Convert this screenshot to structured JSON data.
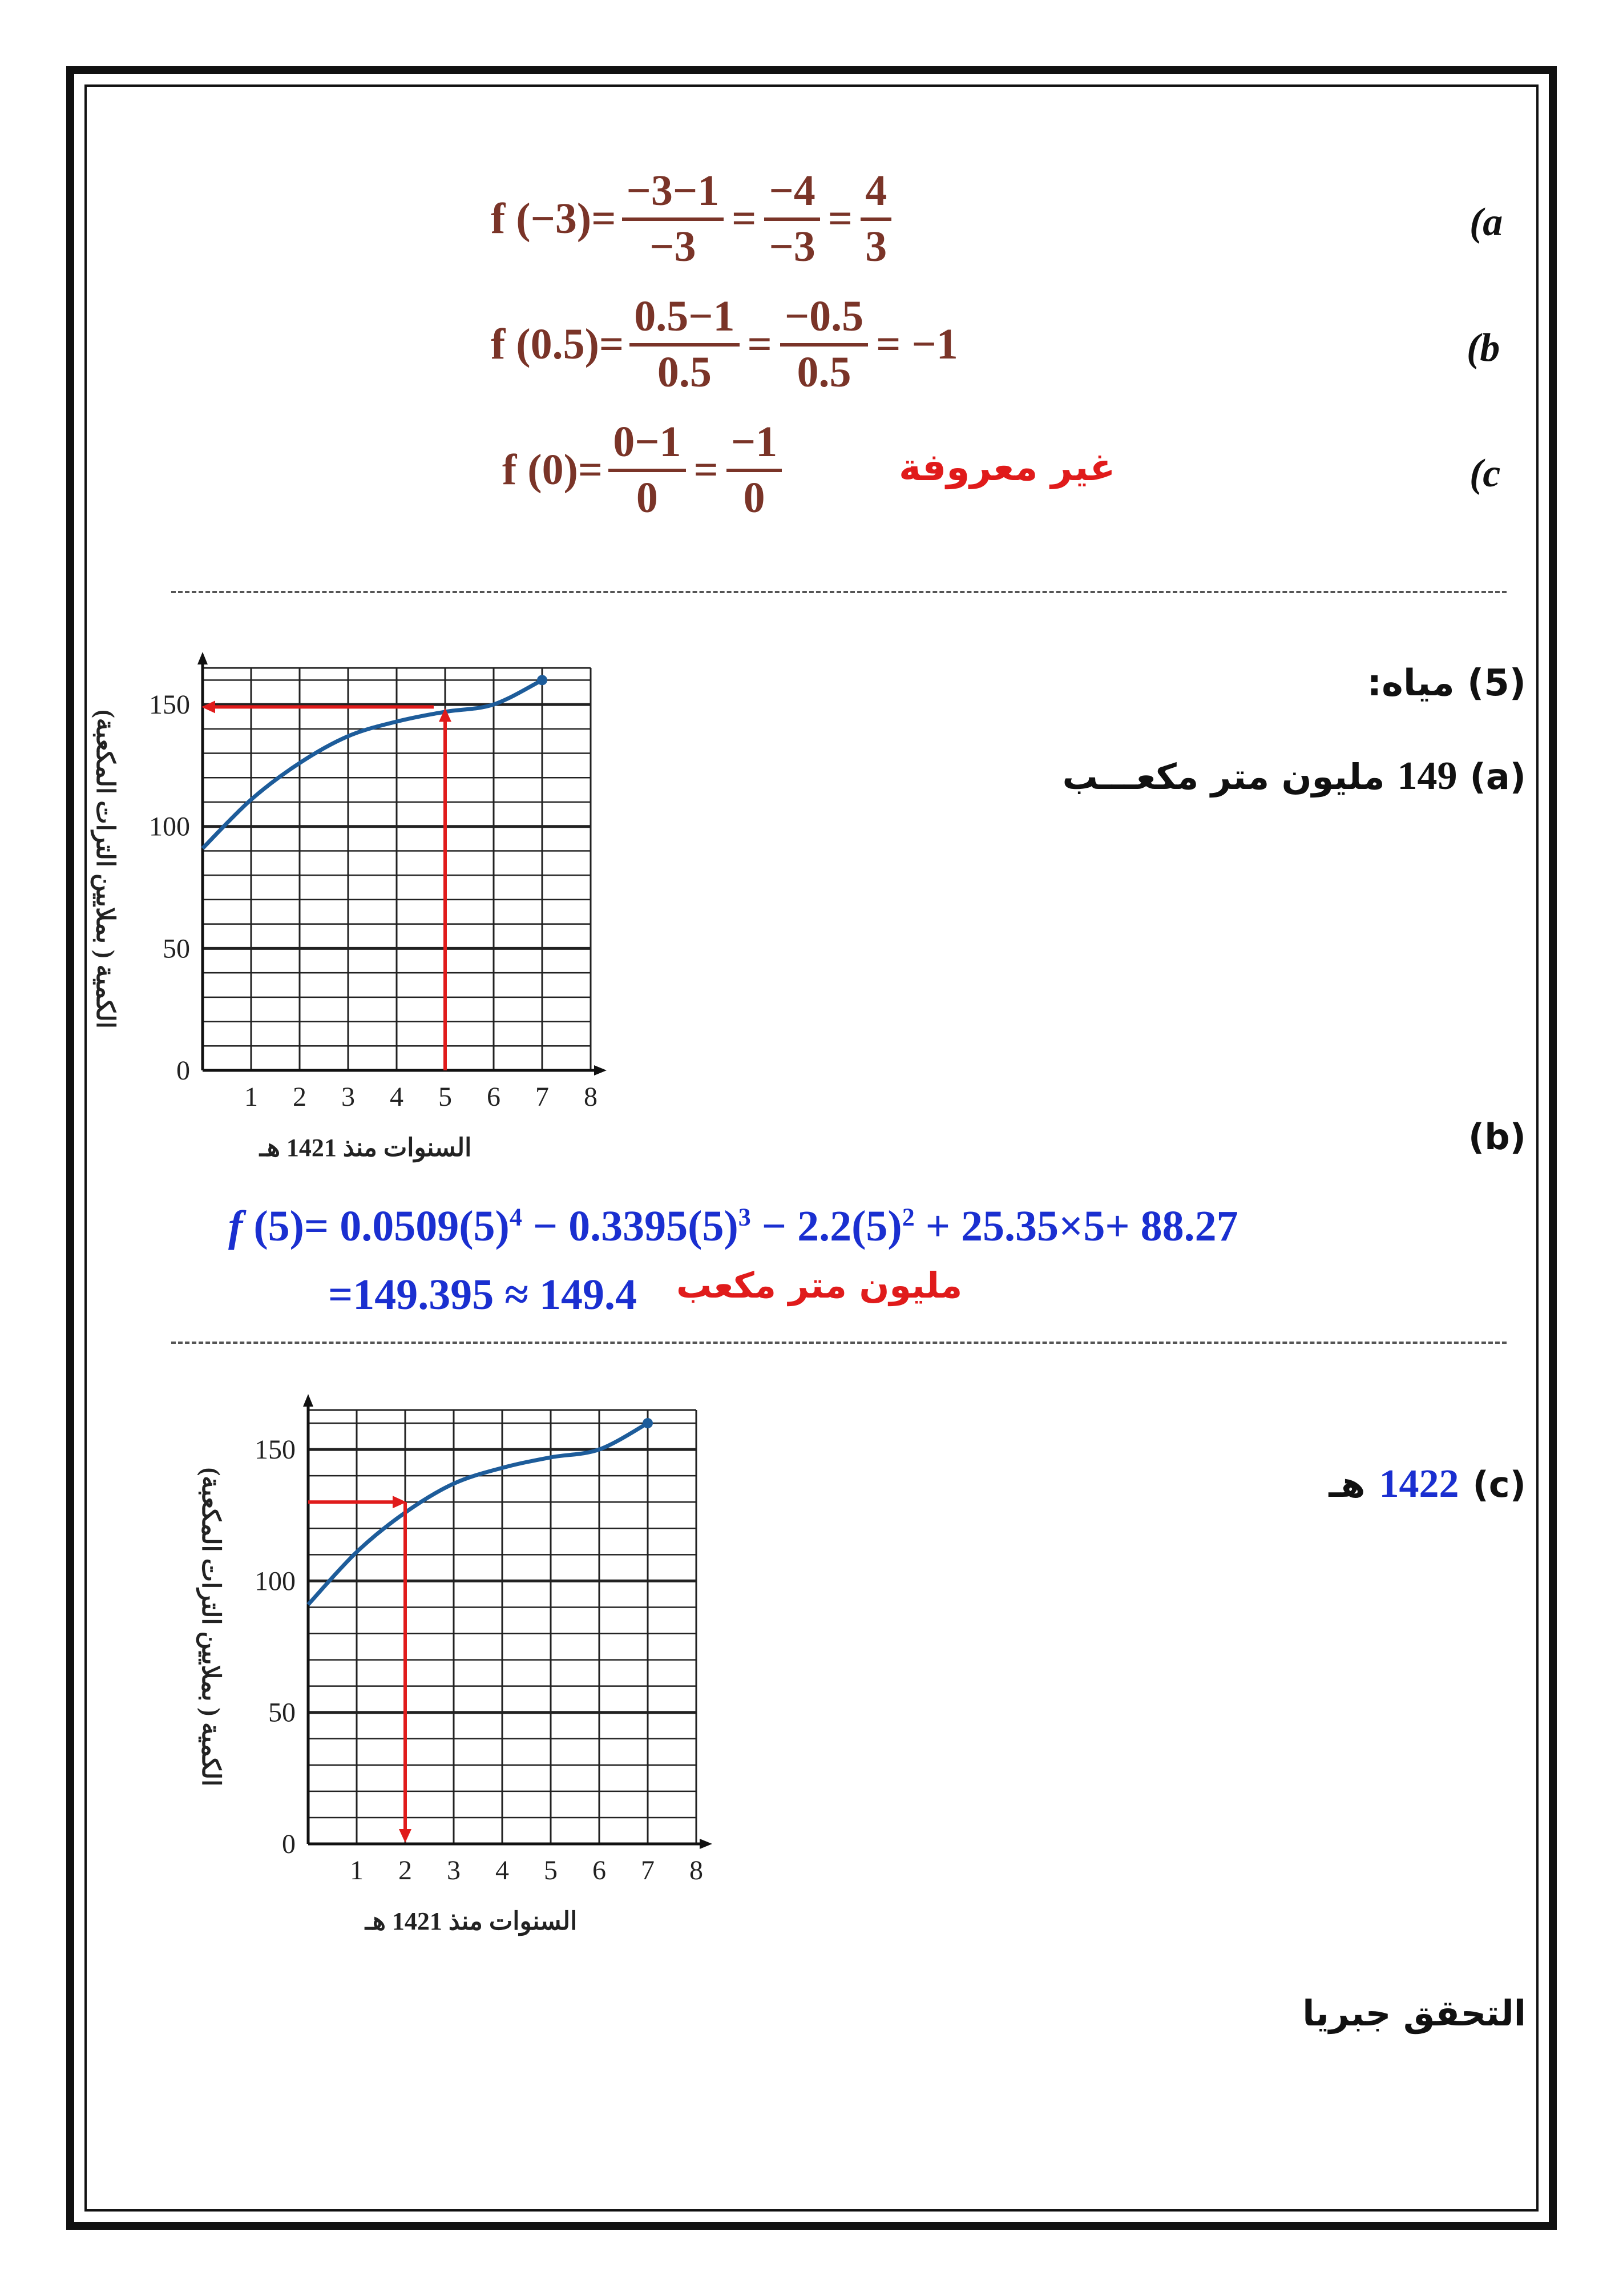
{
  "part_a": {
    "label": "(a",
    "lhs": "f (−3)=",
    "frac1_num": "−3−1",
    "frac1_den": "−3",
    "frac2_num": "−4",
    "frac2_den": "−3",
    "frac3_num": "4",
    "frac3_den": "3"
  },
  "part_b": {
    "label": "(b",
    "lhs": "f (0.5)=",
    "frac1_num": "0.5−1",
    "frac1_den": "0.5",
    "frac2_num": "−0.5",
    "frac2_den": "0.5",
    "result": "= −1"
  },
  "part_c": {
    "label": "(c",
    "lhs": "f (0)=",
    "frac1_num": "0−1",
    "frac1_den": "0",
    "frac2_num": "−1",
    "frac2_den": "0",
    "note": "غير معروفة"
  },
  "q5": {
    "title": "(5) مياه:",
    "a_label": "(a)",
    "a_value": "149",
    "a_unit": "مليون متر مكعـــب",
    "b_label": "(b)",
    "formula": "f (5)= 0.0509(5)⁴ − 0.3395(5)³ − 2.2(5)² + 25.35×5+ 88.27",
    "result": "=149.395 ≈ 149.4",
    "result_unit": "مليون متر مكعب",
    "c_label": "(c)",
    "c_value": "1422",
    "c_unit": "هـ",
    "verify": "التحقق جبريا"
  },
  "chart_data": [
    {
      "type": "line",
      "xlabel": "السنوات منذ 1421 هـ",
      "ylabel": "الكمية ( بملايين الترات المكعبة)",
      "xticks": [
        "1",
        "2",
        "3",
        "4",
        "5",
        "6",
        "7",
        "8"
      ],
      "yticks": [
        "0",
        "50",
        "100",
        "150"
      ],
      "xlim": [
        0,
        8
      ],
      "ylim": [
        0,
        165
      ],
      "grid": true,
      "series": [
        {
          "x": [
            0,
            1,
            2,
            3,
            4,
            5,
            6,
            7
          ],
          "y": [
            91,
            111,
            126,
            137,
            143,
            147,
            150,
            160
          ]
        }
      ],
      "guide_x": 5,
      "guide_y": 149
    },
    {
      "type": "line",
      "xlabel": "السنوات منذ 1421 هـ",
      "ylabel": "الكمية ( بملايين الترات المكعبة)",
      "xticks": [
        "1",
        "2",
        "3",
        "4",
        "5",
        "6",
        "7",
        "8"
      ],
      "yticks": [
        "0",
        "50",
        "100",
        "150"
      ],
      "xlim": [
        0,
        8
      ],
      "ylim": [
        0,
        165
      ],
      "grid": true,
      "series": [
        {
          "x": [
            0,
            1,
            2,
            3,
            4,
            5,
            6,
            7
          ],
          "y": [
            91,
            111,
            126,
            137,
            143,
            147,
            150,
            160
          ]
        }
      ],
      "guide_x": 2,
      "guide_y": 130
    }
  ]
}
